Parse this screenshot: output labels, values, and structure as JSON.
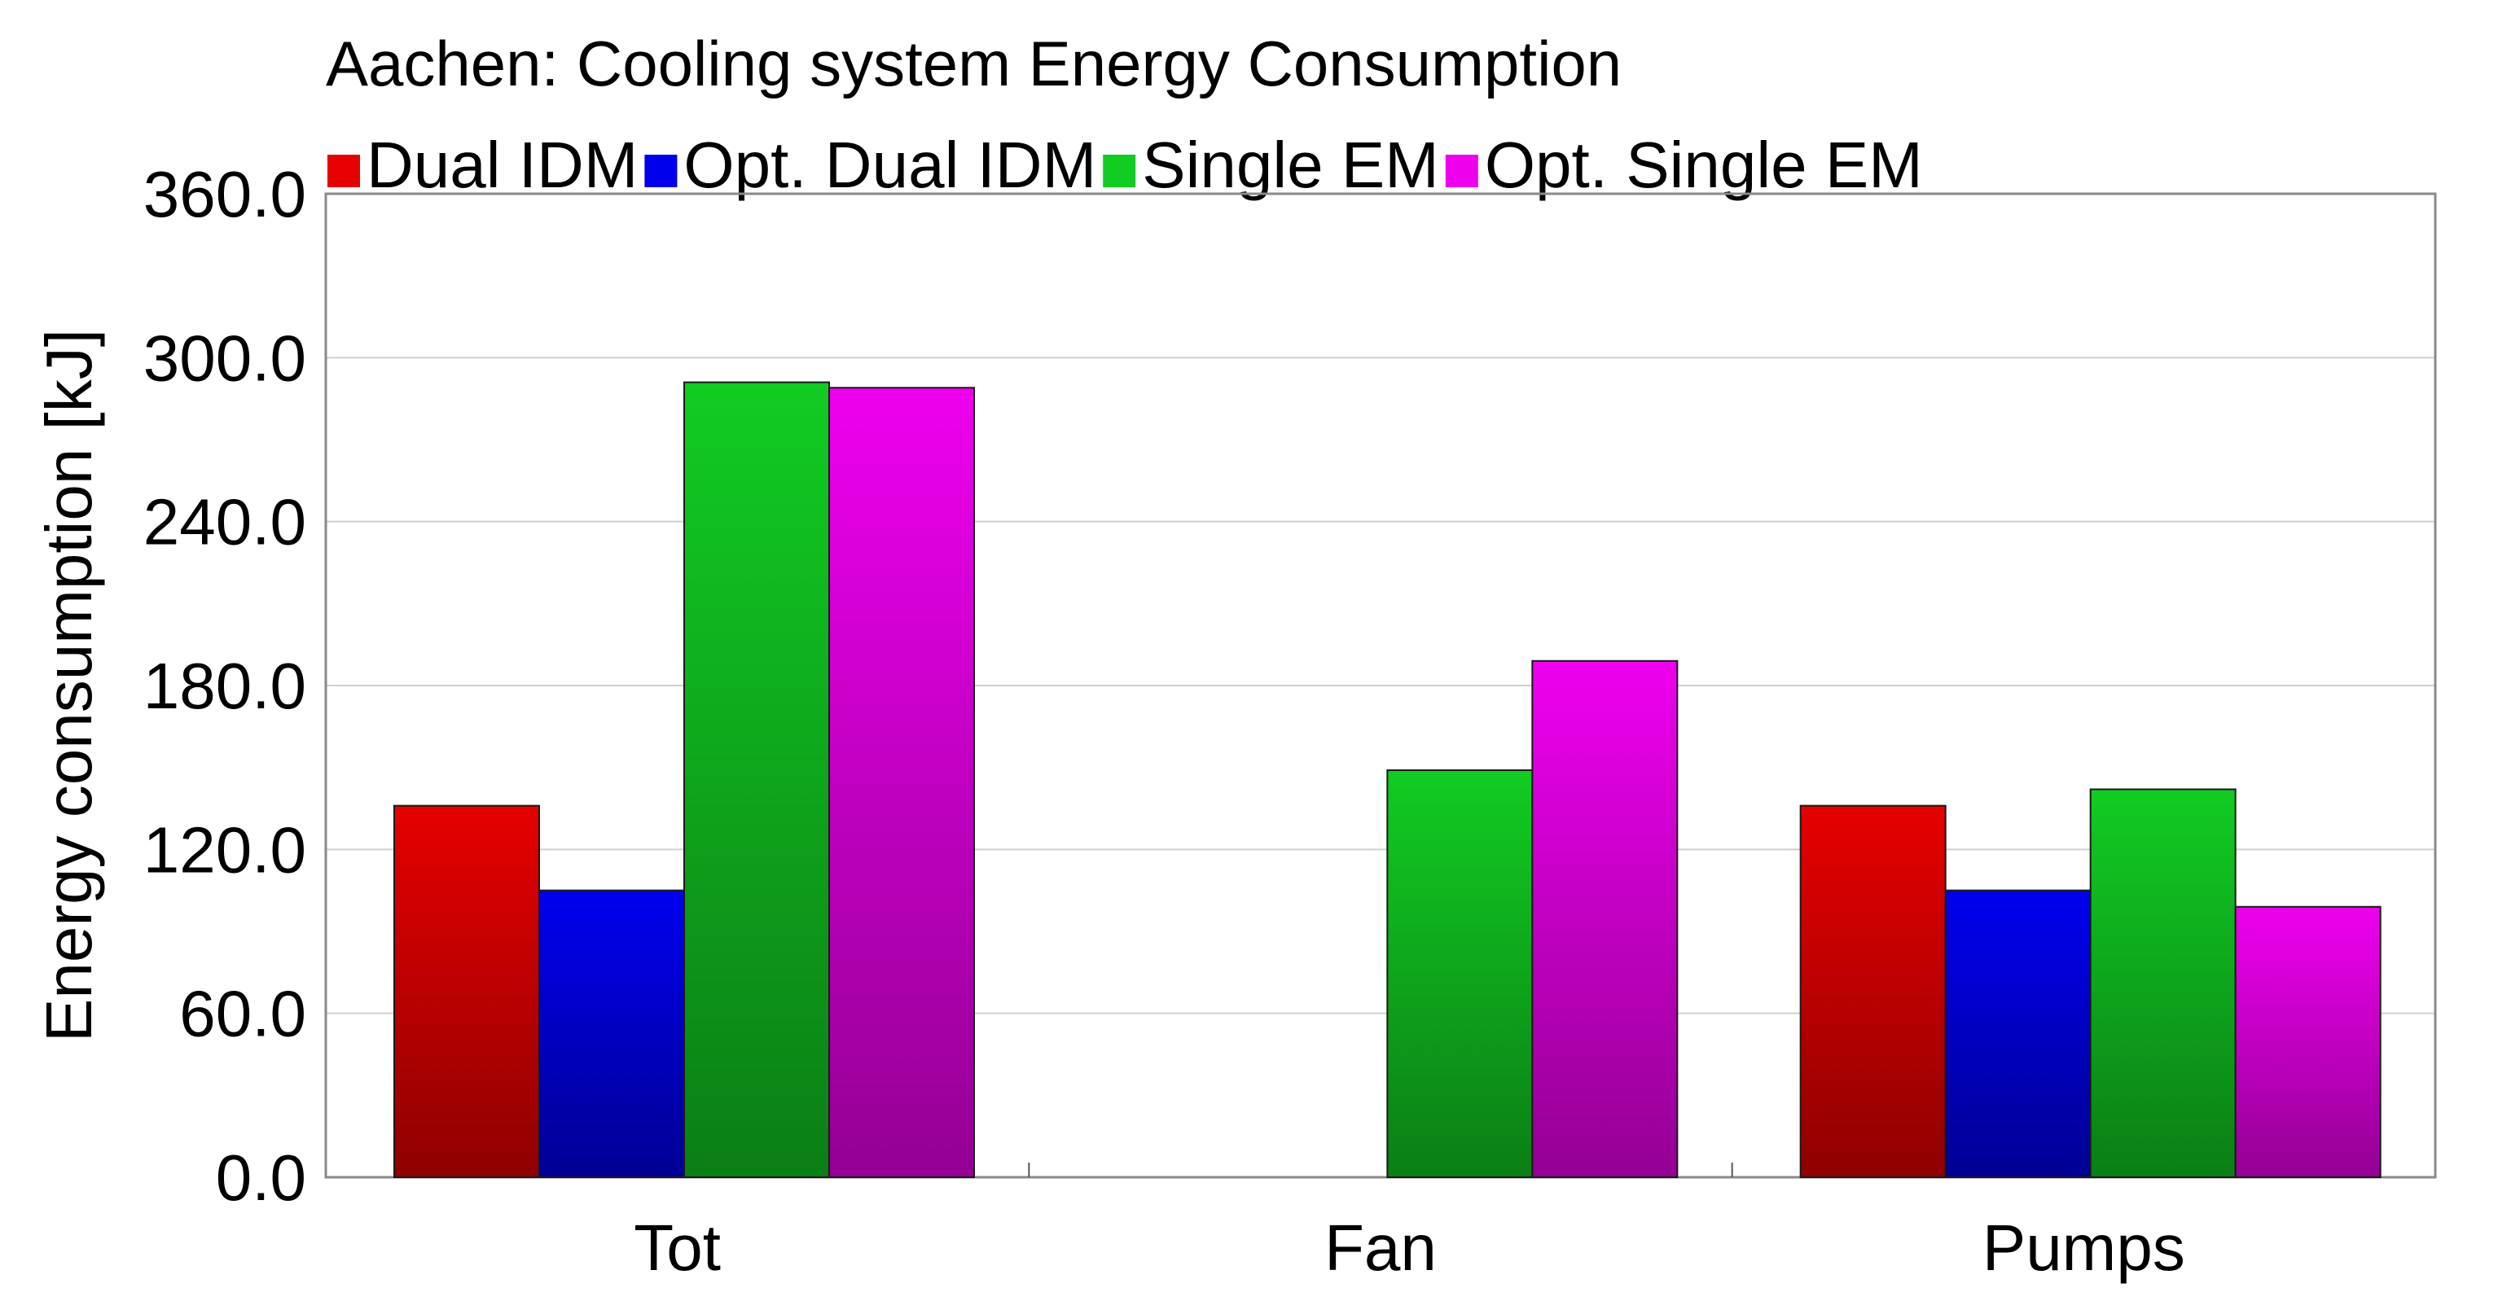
{
  "chart_data": {
    "type": "bar",
    "title": "Aachen: Cooling system Energy Consumption",
    "xlabel": "",
    "ylabel": "Energy consumption [kJ]",
    "ylim": [
      0,
      360
    ],
    "yticks": [
      "0.0",
      "60.0",
      "120.0",
      "180.0",
      "240.0",
      "300.0",
      "360.0"
    ],
    "grid": true,
    "legend_position": "top",
    "categories": [
      "Tot",
      "Fan",
      "Pumps"
    ],
    "series": [
      {
        "name": "Dual IDM",
        "color": "#e60000",
        "values": [
          136,
          0,
          136
        ]
      },
      {
        "name": "Opt. Dual IDM",
        "color": "#0000ee",
        "values": [
          105,
          0,
          105
        ]
      },
      {
        "name": "Single EM",
        "color": "#11cc22",
        "values": [
          291,
          149,
          142
        ]
      },
      {
        "name": "Opt. Single EM",
        "color": "#ee00ee",
        "values": [
          289,
          189,
          99
        ]
      }
    ]
  }
}
